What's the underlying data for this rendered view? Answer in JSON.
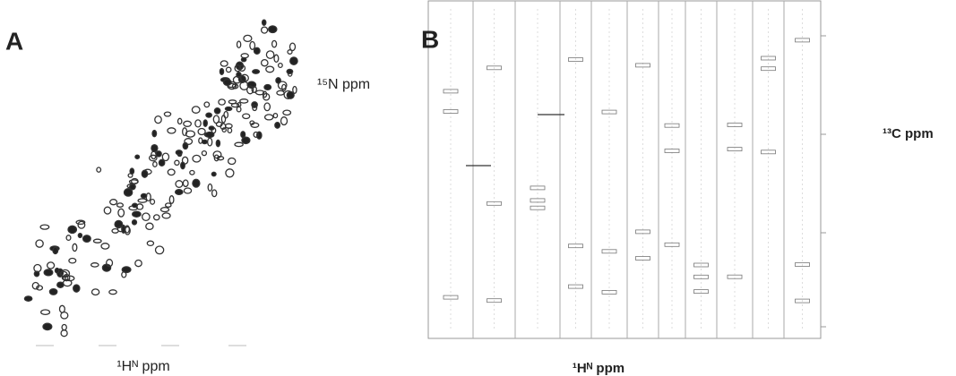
{
  "panels": [
    {
      "label": "A",
      "x_label": "¹Hᴺ ppm",
      "y_label": "¹⁵N ppm"
    },
    {
      "label": "B",
      "x_label": "¹Hᴺ ppm",
      "y_label": "¹³C ppm"
    }
  ]
}
